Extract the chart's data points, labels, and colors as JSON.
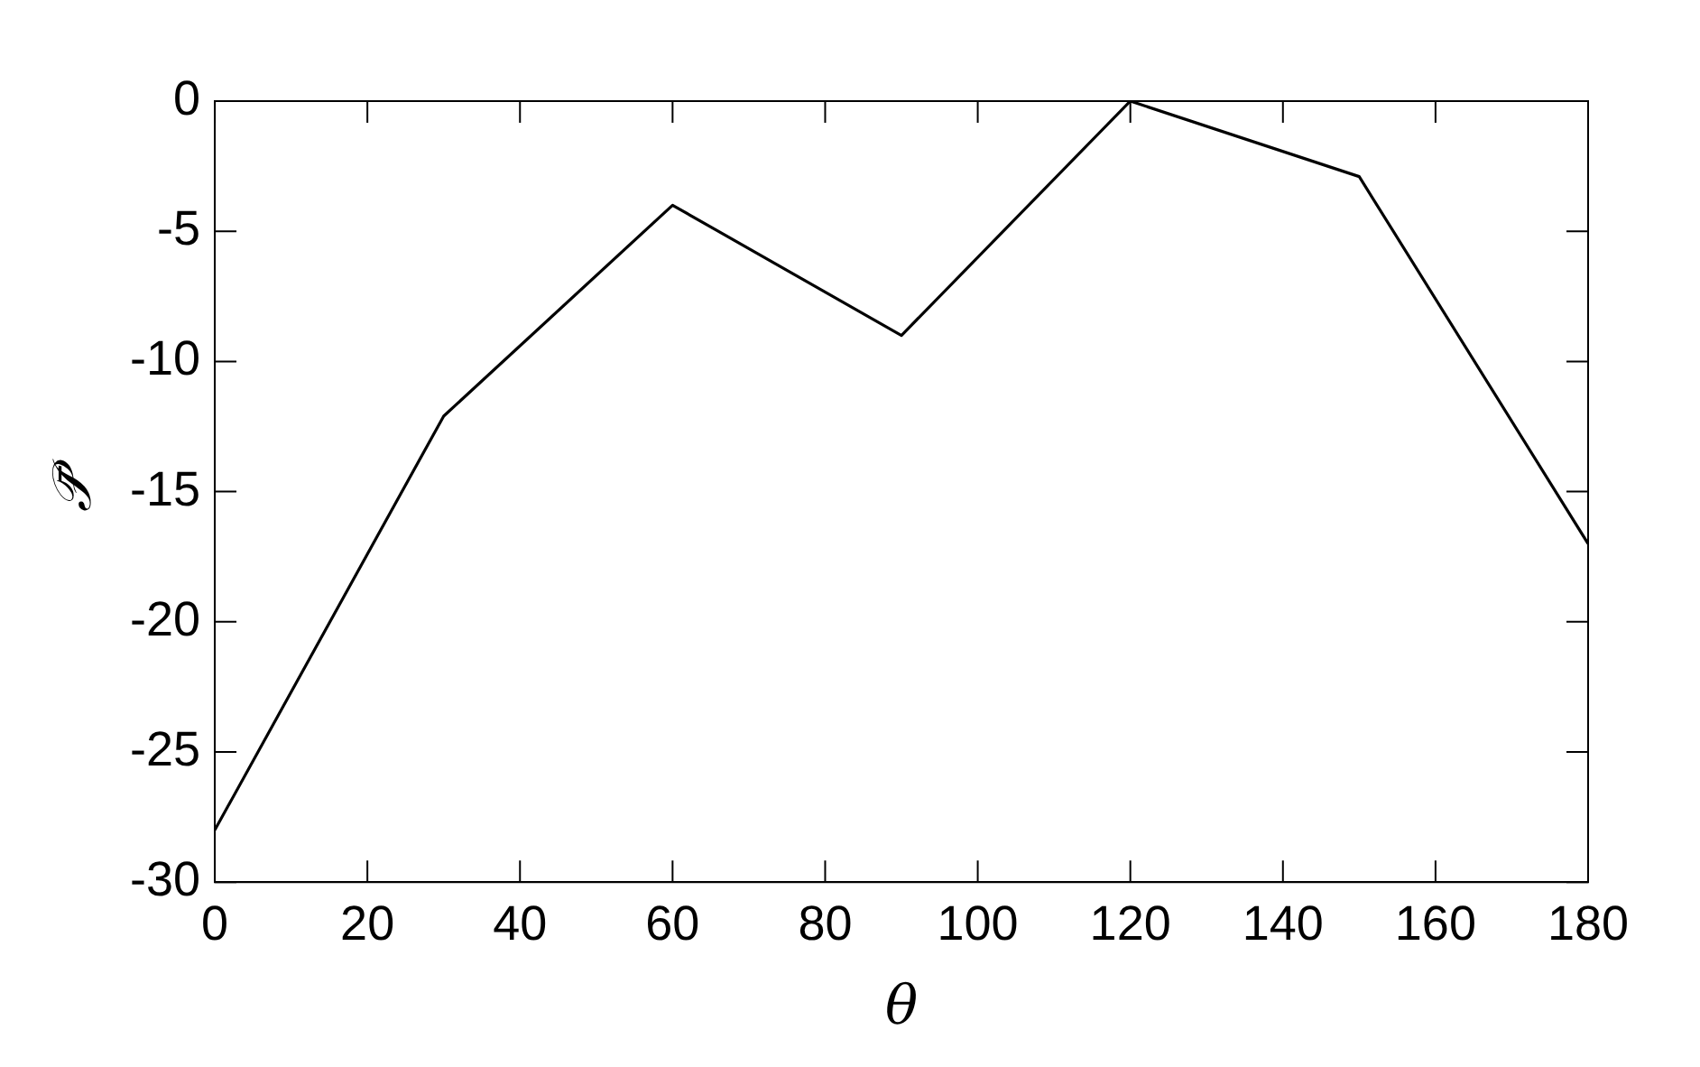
{
  "chart_data": {
    "type": "line",
    "xlabel": "θ",
    "ylabel": "𝒫̄",
    "x": [
      0,
      30,
      60,
      90,
      120,
      150,
      180
    ],
    "series": [
      {
        "color": "#000000",
        "values": [
          -28,
          -12.1,
          -4,
          -9,
          0,
          -2.9,
          -17
        ]
      }
    ],
    "xlim": [
      0,
      180
    ],
    "xticks": [
      0,
      20,
      40,
      60,
      80,
      100,
      120,
      140,
      160,
      180
    ],
    "ylim": [
      -30,
      0
    ],
    "yticks": [
      -30,
      -25,
      -20,
      -15,
      -10,
      -5,
      0
    ],
    "grid": false,
    "legend": false,
    "marker": "none",
    "line_style": "solid"
  }
}
